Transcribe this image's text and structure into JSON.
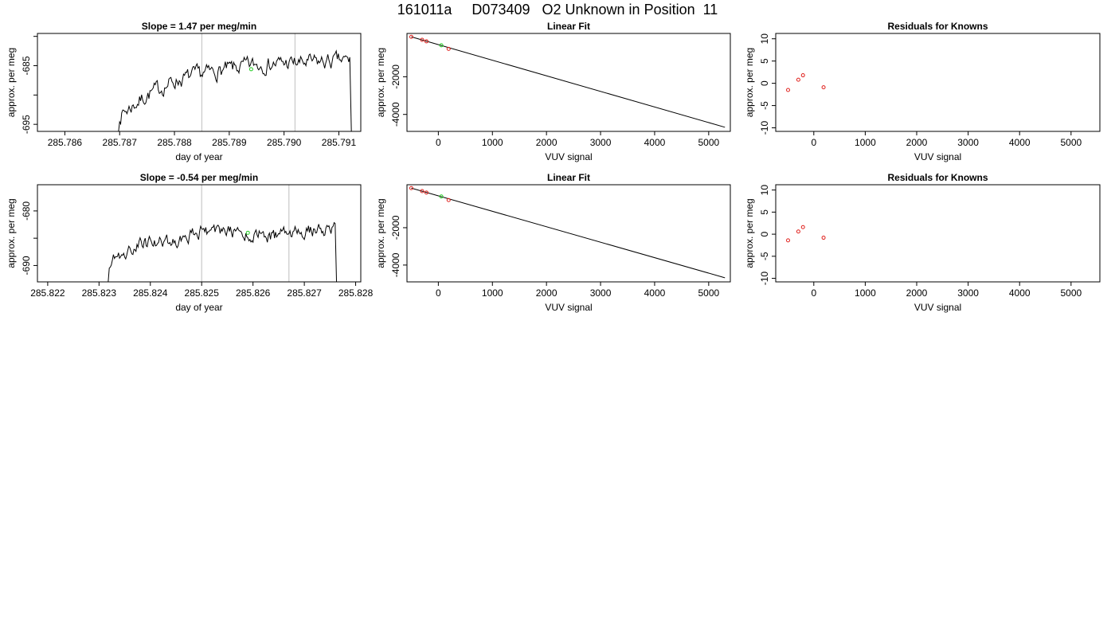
{
  "page": {
    "title": "161011a     D073409   O2 Unknown in Position  11"
  },
  "colors": {
    "line": "#000000",
    "known_points": "#e0201c",
    "unknown_point": "#22cc22",
    "window_lines": "#c8c8c8",
    "frame": "#000000"
  },
  "chart_data": [
    {
      "type": "line",
      "title": "Slope =  1.47  per meg/min",
      "xlabel": "day of year",
      "ylabel": "approx. per meg",
      "xlim": [
        285.7855,
        285.7914
      ],
      "ylim": [
        -696.2,
        -679.5
      ],
      "xticks": [
        285.786,
        285.787,
        285.788,
        285.789,
        285.79,
        285.791
      ],
      "xtick_labels": [
        "285.786",
        "285.787",
        "285.788",
        "285.789",
        "285.790",
        "285.791"
      ],
      "yticks": [
        -695,
        -690,
        -685,
        -680
      ],
      "ytick_labels": [
        "-695",
        "",
        "-685",
        ""
      ],
      "window_lines_x": [
        285.7885,
        285.7902
      ],
      "x_start": 285.787,
      "x_end": 285.7912,
      "trend": {
        "x": [
          285.787,
          285.7875,
          285.788,
          285.7885,
          285.789,
          285.7895,
          285.79,
          285.7905,
          285.791
        ],
        "y": [
          -693.5,
          -690.0,
          -687.6,
          -686.4,
          -685.6,
          -684.8,
          -684.6,
          -684.5,
          -684.2
        ]
      },
      "drop_to": -697,
      "noise_amp": 1.1,
      "seed": 7,
      "unknown_point": {
        "x": 285.7894,
        "y": -685.6
      }
    },
    {
      "type": "scatter",
      "title": "Linear Fit",
      "xlabel": "VUV signal",
      "ylabel": "approx. per meg",
      "xlim": [
        -580,
        5400
      ],
      "ylim": [
        -4900,
        300
      ],
      "xticks": [
        0,
        1000,
        2000,
        3000,
        4000,
        5000
      ],
      "xtick_labels": [
        "0",
        "1000",
        "2000",
        "3000",
        "4000",
        "5000"
      ],
      "yticks": [
        -4000,
        -2000
      ],
      "ytick_labels": [
        "-4000",
        "-2000"
      ],
      "fit_line": {
        "x": [
          -500,
          5300
        ],
        "y": [
          120,
          -4680
        ]
      },
      "knowns": {
        "x": [
          -500,
          -300,
          -220,
          190
        ],
        "y": [
          120,
          -40,
          -120,
          -520
        ]
      },
      "unknown": {
        "x": 55,
        "y": -330
      }
    },
    {
      "type": "scatter",
      "title": "Residuals for Knowns",
      "xlabel": "VUV signal",
      "ylabel": "approx. per meg",
      "xlim": [
        -740,
        5560
      ],
      "ylim": [
        -10.8,
        11.2
      ],
      "xticks": [
        0,
        1000,
        2000,
        3000,
        4000,
        5000
      ],
      "xtick_labels": [
        "0",
        "1000",
        "2000",
        "3000",
        "4000",
        "5000"
      ],
      "yticks": [
        -10,
        -5,
        0,
        5,
        10
      ],
      "ytick_labels": [
        "-10",
        "-5",
        "0",
        "5",
        "10"
      ],
      "knowns": {
        "x": [
          -500,
          -300,
          -210,
          190
        ],
        "y": [
          -1.5,
          0.8,
          1.8,
          -0.9
        ]
      }
    },
    {
      "type": "line",
      "title": "Slope =  -0.54  per meg/min",
      "xlabel": "day of year",
      "ylabel": "approx. per meg",
      "xlim": [
        285.8218,
        285.8281
      ],
      "ylim": [
        -693.0,
        -675.2
      ],
      "xticks": [
        285.822,
        285.823,
        285.824,
        285.825,
        285.826,
        285.827,
        285.828
      ],
      "xtick_labels": [
        "285.822",
        "285.823",
        "285.824",
        "285.825",
        "285.826",
        "285.827",
        "285.828"
      ],
      "yticks": [
        -690,
        -685,
        -680
      ],
      "ytick_labels": [
        "-690",
        "",
        "-680"
      ],
      "window_lines_x": [
        285.825,
        285.8267
      ],
      "x_start": 285.8232,
      "x_end": 285.8276,
      "trend": {
        "x": [
          285.8232,
          285.8237,
          285.824,
          285.8245,
          285.825,
          285.8255,
          285.826,
          285.8265,
          285.827,
          285.8275
        ],
        "y": [
          -689.6,
          -686.4,
          -685.8,
          -685.3,
          -683.6,
          -683.8,
          -684.4,
          -684.6,
          -683.8,
          -683.2
        ]
      },
      "drop_to": -694,
      "noise_amp": 1.0,
      "seed": 19,
      "unknown_point": {
        "x": 285.8259,
        "y": -684.0
      }
    },
    {
      "type": "scatter",
      "title": "Linear Fit",
      "xlabel": "VUV signal",
      "ylabel": "approx. per meg",
      "xlim": [
        -580,
        5400
      ],
      "ylim": [
        -4900,
        300
      ],
      "xticks": [
        0,
        1000,
        2000,
        3000,
        4000,
        5000
      ],
      "xtick_labels": [
        "0",
        "1000",
        "2000",
        "3000",
        "4000",
        "5000"
      ],
      "yticks": [
        -4000,
        -2000
      ],
      "ytick_labels": [
        "-4000",
        "-2000"
      ],
      "fit_line": {
        "x": [
          -500,
          5300
        ],
        "y": [
          120,
          -4680
        ]
      },
      "knowns": {
        "x": [
          -500,
          -300,
          -220,
          190
        ],
        "y": [
          120,
          -40,
          -120,
          -520
        ]
      },
      "unknown": {
        "x": 55,
        "y": -330
      }
    },
    {
      "type": "scatter",
      "title": "Residuals for Knowns",
      "xlabel": "VUV signal",
      "ylabel": "approx. per meg",
      "xlim": [
        -740,
        5560
      ],
      "ylim": [
        -10.8,
        11.2
      ],
      "xticks": [
        0,
        1000,
        2000,
        3000,
        4000,
        5000
      ],
      "xtick_labels": [
        "0",
        "1000",
        "2000",
        "3000",
        "4000",
        "5000"
      ],
      "yticks": [
        -10,
        -5,
        0,
        5,
        10
      ],
      "ytick_labels": [
        "-10",
        "-5",
        "0",
        "5",
        "10"
      ],
      "knowns": {
        "x": [
          -500,
          -300,
          -210,
          190
        ],
        "y": [
          -1.4,
          0.6,
          1.6,
          -0.8
        ]
      }
    }
  ]
}
